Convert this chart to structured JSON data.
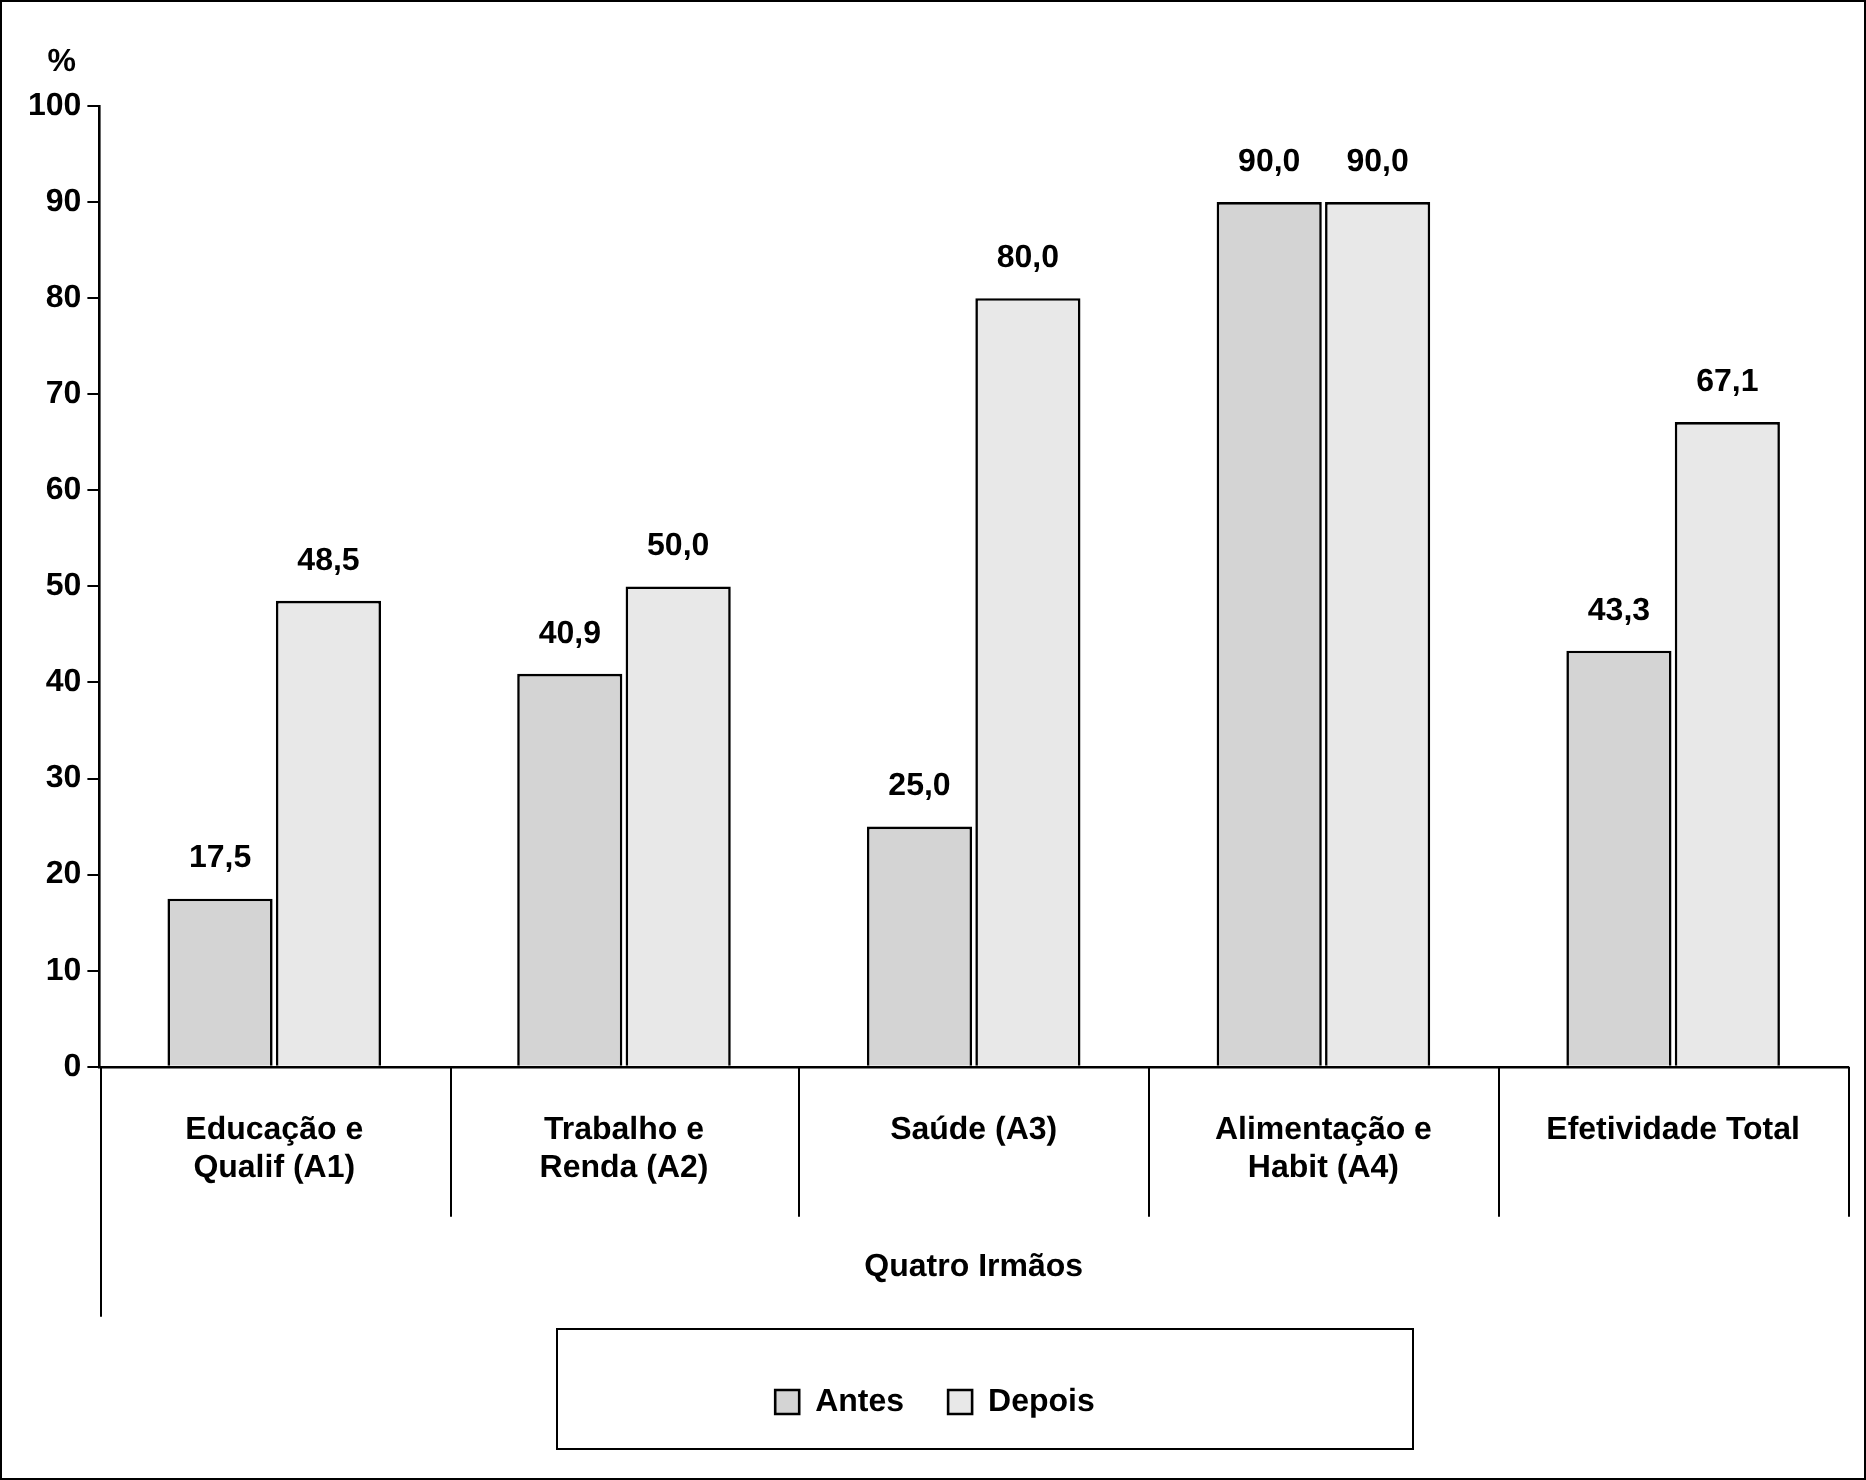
{
  "chart_data": {
    "type": "bar",
    "ylabel": "%",
    "xlabel": "Quatro Irmãos",
    "categories": [
      "Educação e Qualif (A1)",
      "Trabalho e Renda (A2)",
      "Saúde (A3)",
      "Alimentação e Habit (A4)",
      "Efetividade Total"
    ],
    "series": [
      {
        "name": "Antes",
        "color": "#d4d4d4",
        "values": [
          17.5,
          40.9,
          25.0,
          90.0,
          43.3
        ],
        "value_labels": [
          "17,5",
          "40,9",
          "25,0",
          "90,0",
          "43,3"
        ]
      },
      {
        "name": "Depois",
        "color": "#e8e8e8",
        "values": [
          48.5,
          50.0,
          80.0,
          90.0,
          67.1
        ],
        "value_labels": [
          "48,5",
          "50,0",
          "80,0",
          "90,0",
          "67,1"
        ]
      }
    ],
    "ylim": [
      0,
      100
    ],
    "yticks": [
      0,
      10,
      20,
      30,
      40,
      50,
      60,
      70,
      80,
      90,
      100
    ],
    "grid": false,
    "legend": "bottom"
  }
}
